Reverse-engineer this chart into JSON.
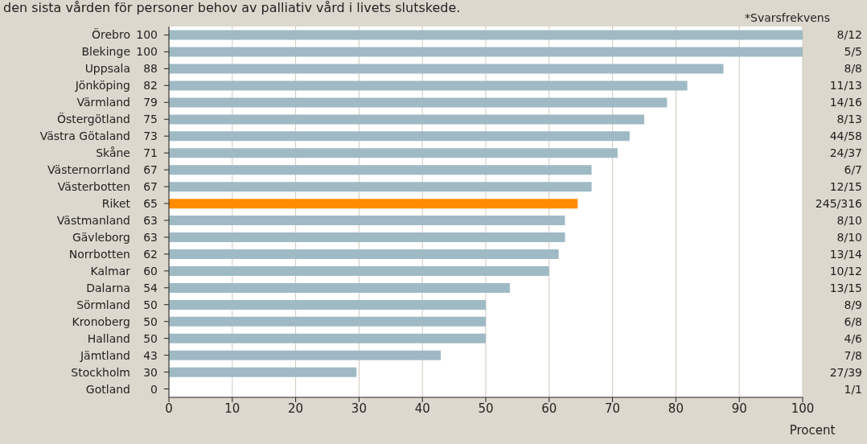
{
  "chart_data": {
    "type": "bar",
    "orientation": "horizontal",
    "title": "den sista vården för personer behov av palliativ vård i livets slutskede.",
    "xlabel": "Procent",
    "categories": [
      "Örebro",
      "Blekinge",
      "Uppsala",
      "Jönköping",
      "Värmland",
      "Östergötland",
      "Västra Götaland",
      "Skåne",
      "Västernorrland",
      "Västerbotten",
      "Riket",
      "Västmanland",
      "Gävleborg",
      "Norrbotten",
      "Kalmar",
      "Dalarna",
      "Sörmland",
      "Kronoberg",
      "Halland",
      "Jämtland",
      "Stockholm",
      "Gotland"
    ],
    "values": [
      100,
      100,
      87.5,
      81.8,
      78.6,
      75,
      72.7,
      70.8,
      66.7,
      66.7,
      64.5,
      62.5,
      62.5,
      61.5,
      60,
      53.8,
      50,
      50,
      50,
      42.9,
      29.6,
      0
    ],
    "value_labels": [
      "100",
      "100",
      "88",
      "82",
      "79",
      "75",
      "73",
      "71",
      "67",
      "67",
      "65",
      "63",
      "63",
      "62",
      "60",
      "54",
      "50",
      "50",
      "50",
      "43",
      "30",
      "0"
    ],
    "colors": [
      "#9fbac5",
      "#9fbac5",
      "#9fbac5",
      "#9fbac5",
      "#9fbac5",
      "#9fbac5",
      "#9fbac5",
      "#9fbac5",
      "#9fbac5",
      "#9fbac5",
      "#ff8c00",
      "#9fbac5",
      "#9fbac5",
      "#9fbac5",
      "#9fbac5",
      "#9fbac5",
      "#9fbac5",
      "#9fbac5",
      "#9fbac5",
      "#9fbac5",
      "#9fbac5",
      "#9fbac5"
    ],
    "xlim": [
      0,
      100
    ],
    "xticks": [
      0,
      10,
      20,
      30,
      40,
      50,
      60,
      70,
      80,
      90,
      100
    ],
    "grid": "x",
    "annotations": [
      "*Svarsfrekvens",
      "8/12",
      "5/5",
      "8/8",
      "11/13",
      "14/16",
      "8/13",
      "44/58",
      "24/37",
      "6/7",
      "12/15",
      "245/316",
      "8/10",
      "8/10",
      "13/14",
      "10/12",
      "13/15",
      "8/9",
      "6/8",
      "4/6",
      "7/8",
      "27/39",
      "1/1"
    ]
  }
}
